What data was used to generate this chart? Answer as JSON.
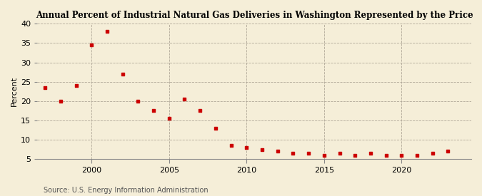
{
  "title": "Annual Percent of Industrial Natural Gas Deliveries in Washington Represented by the Price",
  "ylabel": "Percent",
  "source": "Source: U.S. Energy Information Administration",
  "background_color": "#f5eed8",
  "marker_color": "#cc0000",
  "xlim": [
    1996.5,
    2024.5
  ],
  "ylim": [
    5,
    40
  ],
  "yticks": [
    5,
    10,
    15,
    20,
    25,
    30,
    35,
    40
  ],
  "xticks": [
    2000,
    2005,
    2010,
    2015,
    2020
  ],
  "data": [
    [
      1997,
      23.5
    ],
    [
      1998,
      20.0
    ],
    [
      1999,
      24.0
    ],
    [
      2000,
      34.5
    ],
    [
      2001,
      38.0
    ],
    [
      2002,
      27.0
    ],
    [
      2003,
      20.0
    ],
    [
      2004,
      17.5
    ],
    [
      2005,
      15.5
    ],
    [
      2006,
      20.5
    ],
    [
      2007,
      17.5
    ],
    [
      2008,
      13.0
    ],
    [
      2009,
      8.5
    ],
    [
      2010,
      8.0
    ],
    [
      2011,
      7.5
    ],
    [
      2012,
      7.0
    ],
    [
      2013,
      6.5
    ],
    [
      2014,
      6.5
    ],
    [
      2015,
      6.0
    ],
    [
      2016,
      6.5
    ],
    [
      2017,
      6.0
    ],
    [
      2018,
      6.5
    ],
    [
      2019,
      6.0
    ],
    [
      2020,
      6.0
    ],
    [
      2021,
      6.0
    ],
    [
      2022,
      6.5
    ],
    [
      2023,
      7.0
    ]
  ]
}
